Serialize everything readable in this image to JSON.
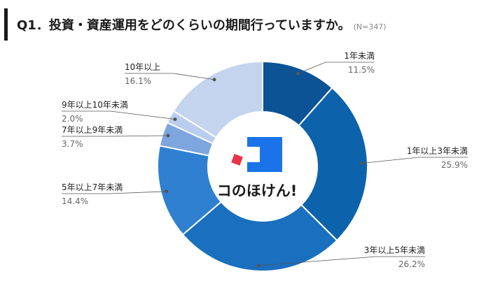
{
  "header": {
    "title": "Q1．投資・資産運用をどのくらいの期間行っていますか。",
    "sample": "(N=347)"
  },
  "logo": {
    "text": "コのほけん!"
  },
  "chart_data": {
    "type": "pie",
    "donut": true,
    "categories": [
      "1年未満",
      "1年以上3年未満",
      "3年以上5年未満",
      "5年以上7年未満",
      "7年以上9年未満",
      "9年以上10年未満",
      "10年以上"
    ],
    "values": [
      11.5,
      25.9,
      26.2,
      14.4,
      3.7,
      2.0,
      16.1
    ],
    "value_labels": [
      "11.5%",
      "25.9%",
      "26.2%",
      "14.4%",
      "3.7%",
      "2.0%",
      "16.1%"
    ],
    "colors": [
      "#0b5394",
      "#0d63ab",
      "#1a6fbf",
      "#2f80d0",
      "#7ea6de",
      "#b9cdee",
      "#c4d4ee"
    ]
  }
}
